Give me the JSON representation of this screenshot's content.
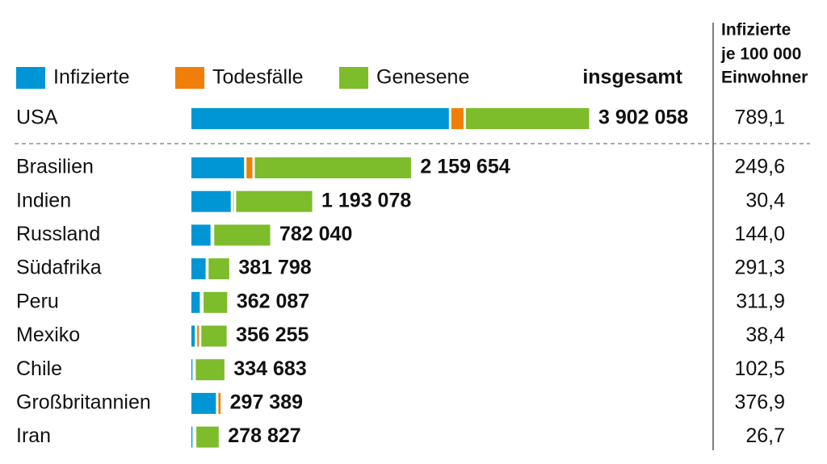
{
  "chart_data": {
    "type": "stacked-bar",
    "categories": [
      "USA",
      "Brasilien",
      "Indien",
      "Russland",
      "Südafrika",
      "Peru",
      "Mexiko",
      "Chile",
      "Großbritannien",
      "Iran"
    ],
    "series": [
      {
        "name": "Infizierte",
        "color": "#0096d6",
        "values": [
          2530000,
          527000,
          397000,
          199000,
          151000,
          94000,
          45000,
          22000,
          251889,
          22000
        ]
      },
      {
        "name": "Todesfälle",
        "color": "#f07f09",
        "values": [
          143000,
          81000,
          28700,
          12500,
          5400,
          13600,
          40400,
          8800,
          45500,
          14600
        ]
      },
      {
        "name": "Genesene",
        "color": "#7dbc2a",
        "values": [
          1229058,
          1551654,
          767378,
          570540,
          225398,
          254487,
          270855,
          303883,
          0,
          242227
        ]
      }
    ],
    "totals": {
      "title": "insgesamt",
      "values": [
        3902058,
        2159654,
        1193078,
        782040,
        381798,
        362087,
        356255,
        334683,
        297389,
        278827
      ],
      "value_labels": [
        "3 902 058",
        "2 159 654",
        "1 193 078",
        "782 040",
        "381 798",
        "362 087",
        "356 255",
        "334 683",
        "297 389",
        "278 827"
      ]
    },
    "per_100k": {
      "title": [
        "Infizierte",
        "je 100 000",
        "Einwohner"
      ],
      "values": [
        789.1,
        249.6,
        30.4,
        144.0,
        291.3,
        311.9,
        38.4,
        102.5,
        376.9,
        26.7
      ],
      "value_labels": [
        "789,1",
        "249,6",
        "30,4",
        "144,0",
        "291,3",
        "311,9",
        "38,4",
        "102,5",
        "376,9",
        "26,7"
      ]
    }
  }
}
